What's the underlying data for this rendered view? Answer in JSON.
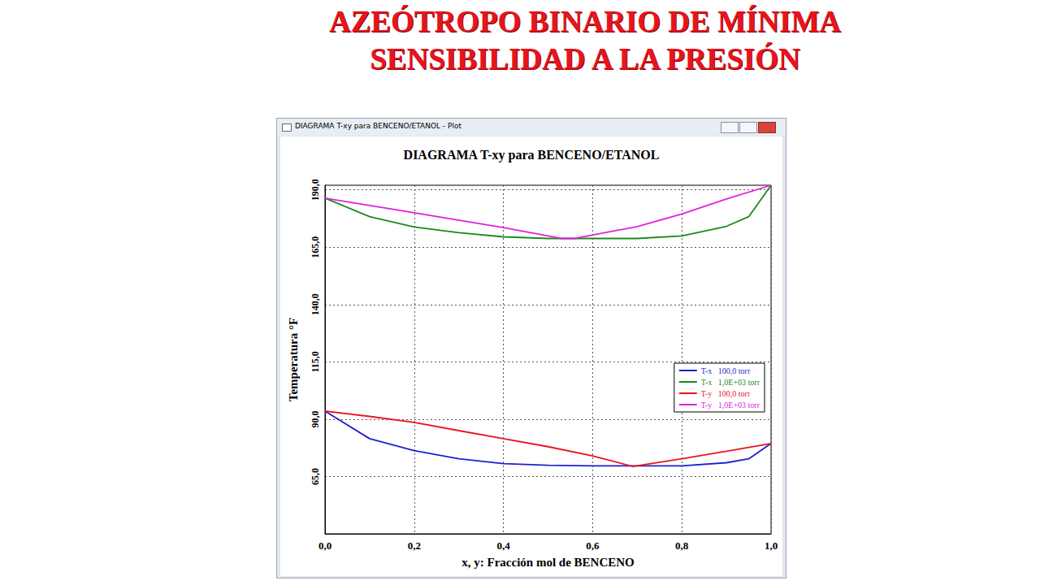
{
  "slide": {
    "title_lines": [
      "AZEÓTROPO BINARIO DE MÍNIMA",
      "SENSIBILIDAD A LA PRESIÓN"
    ],
    "window_title": "DIAGRAMA T-xy para BENCENO/ETANOL - Plot"
  },
  "chart_data": {
    "type": "line",
    "title": "DIAGRAMA T-xy para BENCENO/ETANOL",
    "x_label": "x, y: Fracción mol de BENCENO",
    "y_label": "Temperatura °F",
    "xlim": [
      0,
      1
    ],
    "xticks": [
      {
        "value": 0,
        "label": "0,0"
      },
      {
        "value": 0.2,
        "label": "0,2"
      },
      {
        "value": 0.4,
        "label": "0,4"
      },
      {
        "value": 0.6,
        "label": "0,6"
      },
      {
        "value": 0.8,
        "label": "0,8"
      },
      {
        "value": 1,
        "label": "1,0"
      }
    ],
    "ylim": [
      40,
      192
    ],
    "yticks": [
      {
        "value": 65,
        "label": "65,0"
      },
      {
        "value": 90,
        "label": "90,0"
      },
      {
        "value": 115,
        "label": "115,0"
      },
      {
        "value": 140,
        "label": "140,0"
      },
      {
        "value": 165,
        "label": "165,0"
      },
      {
        "value": 190,
        "label": "190,0"
      }
    ],
    "grid": true,
    "legend": "right",
    "line_style": "solid",
    "series": [
      {
        "name": "T-x   100,0 torr",
        "color": "#1f1fd0",
        "x": [
          0,
          0.1,
          0.2,
          0.3,
          0.4,
          0.5,
          0.6,
          0.7,
          0.8,
          0.9,
          0.95,
          1
        ],
        "values": [
          93.5,
          81.5,
          76.3,
          72.7,
          70.6,
          69.9,
          69.6,
          69.6,
          69.6,
          71,
          72.7,
          79.4
        ]
      },
      {
        "name": "T-x   1,0E+03 torr",
        "color": "#1a8a1a",
        "x": [
          0,
          0.1,
          0.2,
          0.3,
          0.4,
          0.5,
          0.6,
          0.7,
          0.8,
          0.9,
          0.95,
          1
        ],
        "values": [
          186.4,
          178.3,
          173.8,
          171.3,
          169.5,
          168.8,
          168.8,
          168.8,
          169.9,
          174.1,
          178.3,
          192
        ]
      },
      {
        "name": "T-y   100,0 torr",
        "color": "#e8141c",
        "x": [
          0,
          0.1,
          0.2,
          0.3,
          0.4,
          0.5,
          0.6,
          0.69,
          0.8,
          0.9,
          1
        ],
        "values": [
          93.5,
          91.2,
          88.6,
          85,
          81.5,
          78,
          74,
          69.4,
          72.7,
          76,
          79.4
        ]
      },
      {
        "name": "T-y   1,0E+03 torr",
        "color": "#e020e0",
        "x": [
          0,
          0.2,
          0.4,
          0.53,
          0.56,
          0.7,
          0.8,
          0.9,
          1
        ],
        "values": [
          186.4,
          180,
          173.5,
          168.8,
          168.8,
          174,
          179.5,
          186,
          192
        ]
      }
    ]
  }
}
